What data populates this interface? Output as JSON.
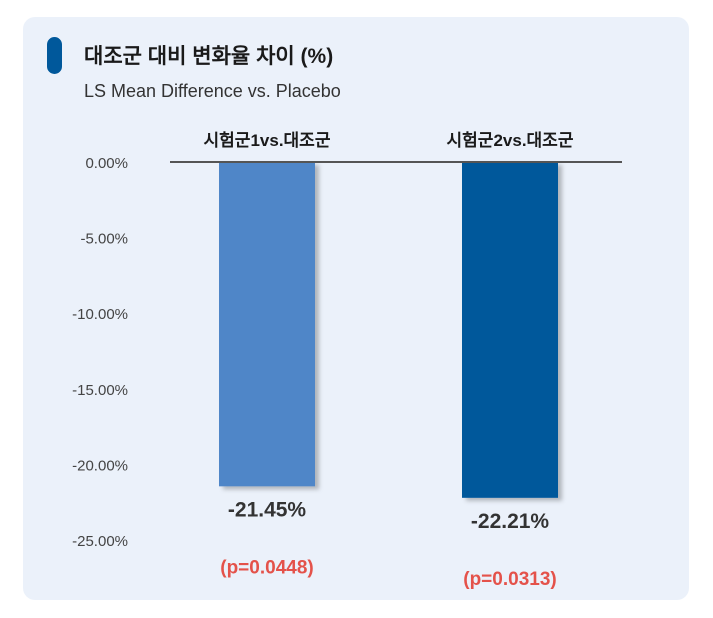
{
  "header": {
    "title": "대조군 대비 변화율 차이 (%)",
    "subtitle": "LS Mean Difference vs. Placebo"
  },
  "colors": {
    "background": "#ebf1fa",
    "accent": "#00589b",
    "bar1": "#4f86c8",
    "bar2": "#00589b",
    "pvalue": "#e4524a"
  },
  "chart_data": {
    "type": "bar",
    "title": "대조군 대비 변화율 차이 (%)",
    "subtitle": "LS Mean Difference vs. Placebo",
    "categories": [
      "시험군1vs.대조군",
      "시험군2vs.대조군"
    ],
    "values": [
      -21.45,
      -22.21
    ],
    "value_labels": [
      "-21.45%",
      "-22.21%"
    ],
    "pvalues": [
      "(p=0.0448)",
      "(p=0.0313)"
    ],
    "ylim": [
      -25,
      0
    ],
    "yticks": [
      0,
      -5,
      -10,
      -15,
      -20,
      -25
    ],
    "ytick_labels": [
      "0.00%",
      "-5.00%",
      "-10.00%",
      "-15.00%",
      "-20.00%",
      "-25.00%"
    ],
    "xlabel": "",
    "ylabel": "",
    "category_position": "top",
    "grid": false,
    "legend": false
  }
}
